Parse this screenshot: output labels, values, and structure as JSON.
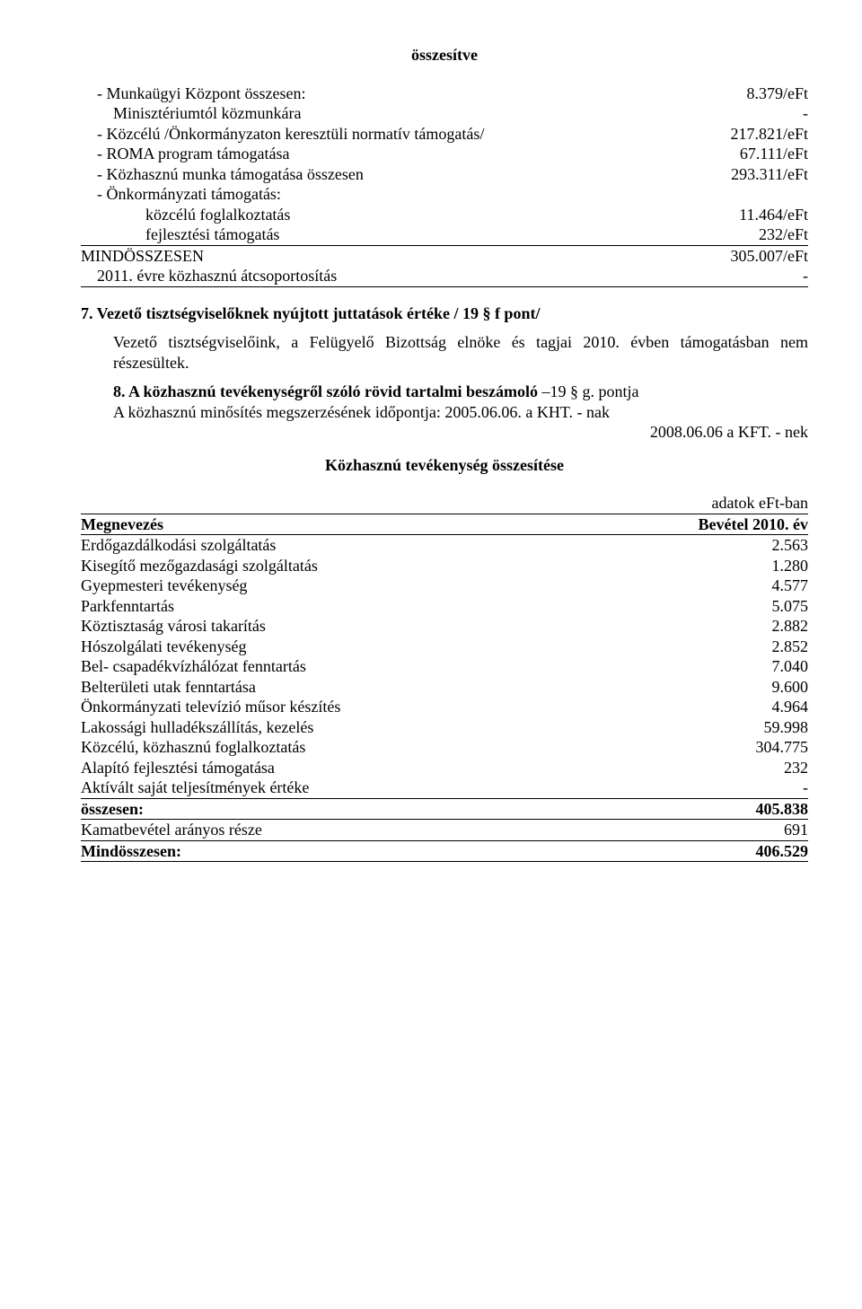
{
  "title_top": "összesítve",
  "bullet_dash": "-",
  "financial_lines": [
    {
      "indent": "list-line",
      "dash": true,
      "label": "Munkaügyi Központ összesen:",
      "value": "8.379/eFt"
    },
    {
      "indent": "indent-1",
      "dash": false,
      "label": "Minisztériumtól közmunkára",
      "value": "-"
    },
    {
      "indent": "list-line",
      "dash": true,
      "label": "Közcélú /Önkormányzaton keresztüli normatív támogatás/",
      "value": "217.821/eFt"
    },
    {
      "indent": "list-line",
      "dash": true,
      "label": "ROMA program támogatása",
      "value": "67.111/eFt"
    },
    {
      "indent": "list-line",
      "dash": true,
      "label": "Közhasznú munka támogatása összesen",
      "value": "293.311/eFt"
    },
    {
      "indent": "list-line",
      "dash": true,
      "label": "Önkormányzati támogatás:",
      "value": ""
    },
    {
      "indent": "indent-2",
      "dash": false,
      "label": "közcélú foglalkoztatás",
      "value": "11.464/eFt"
    },
    {
      "indent": "indent-2",
      "dash": false,
      "label": "fejlesztési támogatás",
      "value": "232/eFt",
      "underline": true
    },
    {
      "indent": "",
      "dash": false,
      "label": "MINDÖSSZESEN",
      "value": "305.007/eFt"
    },
    {
      "indent": "indent-05",
      "dash": false,
      "label": "2011. évre közhasznú átcsoportosítás",
      "value": "-",
      "underline": true
    }
  ],
  "section7": {
    "heading": "7. Vezető tisztségviselőknek nyújtott juttatások értéke / 19 § f  pont/",
    "body": "Vezető tisztségviselőink, a Felügyelő Bizottság elnöke és tagjai 2010. évben támogatásban nem részesültek."
  },
  "section8": {
    "lead_label": "8. A közhasznú tevékenységről szóló rövid tartalmi beszámoló",
    "lead_suffix": " –19 § g. pontja",
    "line2": "A közhasznú minősítés megszerzésének időpontja: 2005.06.06. a KHT. - nak",
    "line3": "2008.06.06  a KFT. - nek"
  },
  "summary_title": "Közhasznú tevékenység összesítése",
  "unit_label": "adatok   eFt-ban",
  "table_header": {
    "left": "Megnevezés",
    "right": "Bevétel 2010. év"
  },
  "table_rows": [
    {
      "label": "Erdőgazdálkodási szolgáltatás",
      "value": "2.563"
    },
    {
      "label": "Kisegítő mezőgazdasági szolgáltatás",
      "value": "1.280"
    },
    {
      "label": "Gyepmesteri tevékenység",
      "value": "4.577"
    },
    {
      "label": "Parkfenntartás",
      "value": "5.075"
    },
    {
      "label": "Köztisztaság városi takarítás",
      "value": "2.882"
    },
    {
      "label": "Hószolgálati tevékenység",
      "value": "2.852"
    },
    {
      "label": "Bel- csapadékvízhálózat fenntartás",
      "value": "7.040"
    },
    {
      "label": "Belterületi utak fenntartása",
      "value": "9.600"
    },
    {
      "label": "Önkormányzati televízió műsor készítés",
      "value": "4.964"
    },
    {
      "label": "Lakossági hulladékszállítás, kezelés",
      "value": "59.998"
    },
    {
      "label": "Közcélú, közhasznú foglalkoztatás",
      "value": "304.775"
    },
    {
      "label": "Alapító fejlesztési támogatása",
      "value": "232"
    },
    {
      "label": "Aktívált saját teljesítmények értéke",
      "value": "-",
      "underline": true
    },
    {
      "label": "összesen:",
      "value": "405.838",
      "bold": true,
      "underline": true
    },
    {
      "label": "Kamatbevétel arányos része",
      "value": "691",
      "underline": true
    },
    {
      "label": "Mindösszesen:",
      "value": "406.529",
      "bold": true,
      "underline": true
    }
  ]
}
